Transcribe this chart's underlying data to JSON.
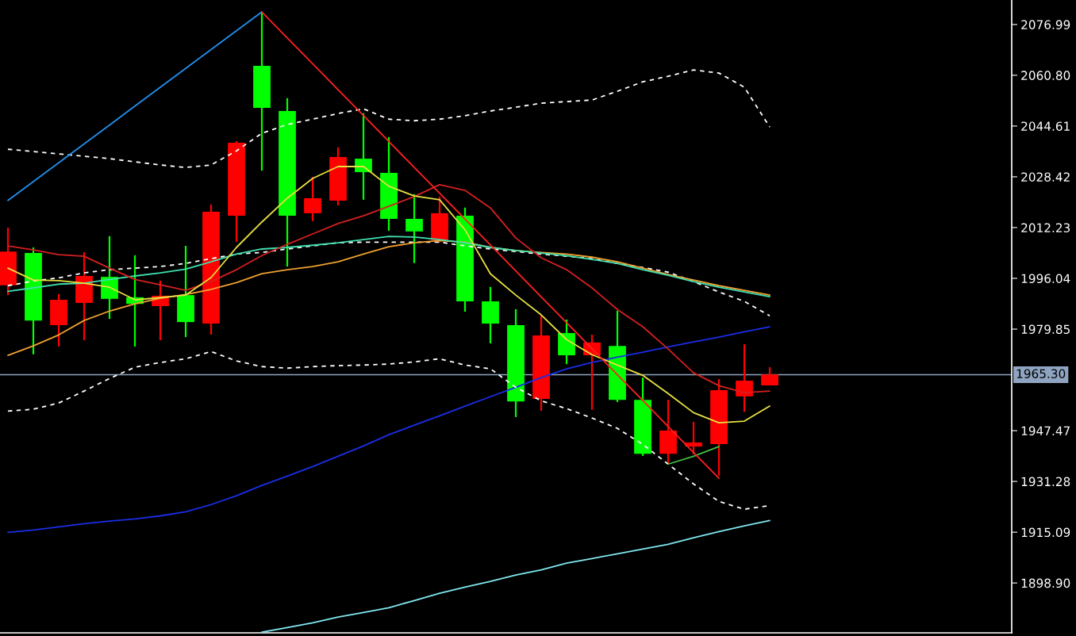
{
  "chart_data": {
    "type": "candlestick",
    "categories": [
      null,
      null,
      null,
      null,
      null,
      null,
      null,
      null,
      null,
      null,
      null,
      null,
      null,
      null,
      null,
      null,
      null,
      null,
      null,
      null,
      null,
      null,
      null,
      null,
      null,
      null,
      null,
      null,
      null,
      null,
      null
    ],
    "series": [
      {
        "type": "line",
        "color": "#80e8f0",
        "values": [
          null,
          null,
          null,
          null,
          null,
          null,
          null,
          null,
          null,
          null,
          1883.2,
          1884.7,
          1886.2,
          1888.0,
          1889.5,
          1891.0,
          1893.3,
          1895.6,
          1897.6,
          1899.4,
          1901.4,
          1903.1,
          1905.2,
          1906.7,
          1908.2,
          1909.7,
          1911.2,
          1913.3,
          1915.3,
          1917.1,
          1918.8
        ]
      },
      {
        "type": "line",
        "color": "#1a2ee8",
        "values": [
          1915.0,
          1915.8,
          1916.8,
          1917.8,
          1918.6,
          1919.3,
          1920.3,
          1921.6,
          1923.9,
          1926.7,
          1930.0,
          1933.0,
          1936.0,
          1939.3,
          1942.6,
          1946.2,
          1949.2,
          1952.2,
          1955.3,
          1958.3,
          1961.3,
          1964.4,
          1967.2,
          1969.2,
          1970.9,
          1972.5,
          1974.2,
          1975.8,
          1977.3,
          1979.0,
          1980.6
        ]
      },
      {
        "type": "line",
        "color": "#ffffff",
        "line_style": "dashed",
        "values": [
          2037.2,
          2036.5,
          2035.7,
          2035.0,
          2034.2,
          2033.2,
          2032.2,
          2031.4,
          2032.2,
          2036.7,
          2042.3,
          2045.1,
          2046.8,
          2048.6,
          2050.1,
          2046.8,
          2046.3,
          2046.8,
          2047.9,
          2049.4,
          2050.6,
          2051.9,
          2052.4,
          2052.9,
          2055.7,
          2058.7,
          2060.5,
          2062.5,
          2061.5,
          2057.0,
          2044.3
        ]
      },
      {
        "type": "line",
        "color": "#ffffff",
        "line_style": "dashed",
        "values": [
          1993.7,
          1995.2,
          1996.2,
          1997.8,
          1998.8,
          1999.3,
          1999.8,
          2000.8,
          2002.3,
          2003.8,
          2004.3,
          2005.4,
          2006.4,
          2007.4,
          2007.6,
          2007.6,
          2007.6,
          2007.6,
          2006.4,
          2005.4,
          2004.6,
          2003.8,
          2003.1,
          2002.3,
          2000.8,
          1999.5,
          1998.0,
          1995.0,
          1991.7,
          1988.7,
          1984.1
        ]
      },
      {
        "type": "line",
        "color": "#ffffff",
        "line_style": "dashed",
        "values": [
          1953.7,
          1954.3,
          1956.3,
          1960.1,
          1964.1,
          1967.7,
          1969.2,
          1970.4,
          1972.7,
          1969.7,
          1967.9,
          1967.4,
          1967.9,
          1968.2,
          1968.4,
          1968.7,
          1969.4,
          1970.4,
          1968.4,
          1967.2,
          1961.3,
          1957.0,
          1954.5,
          1951.5,
          1948.2,
          1943.1,
          1936.8,
          1930.5,
          1924.9,
          1922.4,
          1923.6
        ]
      },
      {
        "type": "line",
        "color": "#f0a030",
        "values": [
          1971.5,
          1974.5,
          1978.0,
          1982.6,
          1985.6,
          1987.9,
          1989.7,
          1990.9,
          1992.5,
          1994.7,
          1997.5,
          1998.8,
          1999.8,
          2001.3,
          2003.8,
          2006.1,
          2007.4,
          2008.1,
          2007.6,
          2005.9,
          2004.9,
          2004.3,
          2003.8,
          2002.8,
          2001.3,
          1999.3,
          1997.3,
          1995.5,
          1993.7,
          1992.2,
          1990.7
        ]
      },
      {
        "type": "line",
        "color": "#40e0b0",
        "values": [
          1991.9,
          1993.0,
          1994.2,
          1994.5,
          1995.7,
          1996.8,
          1997.8,
          1999.0,
          2001.3,
          2003.8,
          2005.4,
          2005.9,
          2006.6,
          2007.4,
          2008.4,
          2009.4,
          2009.2,
          2008.4,
          2007.4,
          2005.9,
          2004.9,
          2004.1,
          2003.3,
          2002.1,
          2000.8,
          1998.8,
          1997.0,
          1995.0,
          1993.2,
          1991.7,
          1990.2
        ]
      },
      {
        "type": "line",
        "color": "#d42020",
        "values": [
          2006.4,
          2005.1,
          2003.6,
          2003.1,
          1999.3,
          1995.7,
          1994.0,
          1992.2,
          1995.0,
          1998.8,
          2003.3,
          2006.9,
          2010.2,
          2013.5,
          2016.0,
          2019.0,
          2022.1,
          2025.9,
          2024.1,
          2018.5,
          2008.9,
          2002.6,
          1998.8,
          1993.0,
          1986.1,
          1980.6,
          1973.5,
          1965.9,
          1961.8,
          1959.6,
          1960.1
        ]
      },
      {
        "type": "line",
        "color": "#e8e040",
        "values": [
          1999.3,
          1995.5,
          1995.3,
          1994.5,
          1993.2,
          1989.2,
          1989.9,
          1990.7,
          1996.3,
          2005.9,
          2014.0,
          2021.6,
          2027.9,
          2031.7,
          2031.7,
          2025.4,
          2022.3,
          2021.1,
          2011.5,
          1997.5,
          1990.7,
          1984.4,
          1976.5,
          1971.7,
          1968.4,
          1965.1,
          1959.3,
          1953.2,
          1950.0,
          1950.5,
          1955.3
        ]
      },
      {
        "type": "line",
        "color": "#40c040",
        "values": [
          null,
          null,
          null,
          null,
          null,
          null,
          null,
          null,
          null,
          null,
          null,
          null,
          null,
          null,
          null,
          null,
          null,
          null,
          null,
          null,
          null,
          null,
          null,
          null,
          null,
          null,
          1936.8,
          1939.3,
          1942.4,
          null,
          null
        ]
      },
      {
        "type": "line",
        "color": "#2090f0",
        "values": [
          2020.9,
          2026.9,
          2032.9,
          2038.9,
          2044.9,
          2051.0,
          2057.0,
          2063.0,
          2069.0,
          2075.0,
          2081.0,
          null,
          null,
          null,
          null,
          null,
          null,
          null,
          null,
          null,
          null,
          null,
          null,
          null,
          null,
          null,
          null,
          null,
          null,
          null,
          null
        ]
      },
      {
        "type": "line",
        "color": "#ff2020",
        "values": [
          null,
          null,
          null,
          null,
          null,
          null,
          null,
          null,
          null,
          null,
          2081.0,
          2072.7,
          2064.5,
          2056.2,
          2048.0,
          2039.7,
          2031.4,
          2023.2,
          2014.9,
          2006.7,
          1998.4,
          1990.1,
          1981.9,
          1973.6,
          1965.3,
          1957.1,
          1948.8,
          1940.5,
          1932.3,
          null,
          null
        ]
      },
      {
        "colors": [
          "#ff0000",
          "#00ff00",
          "#ff0000",
          "#ff0000",
          "#00ff00",
          "#00ff00",
          "#ff0000",
          "#00ff00",
          "#ff0000",
          "#ff0000",
          "#00ff00",
          "#00ff00",
          "#ff0000",
          "#ff0000",
          "#00ff00",
          "#00ff00",
          "#00ff00",
          "#ff0000",
          "#00ff00",
          "#00ff00",
          "#00ff00",
          "#ff0000",
          "#00ff00",
          "#ff0000",
          "#00ff00",
          "#00ff00",
          "#ff0000",
          "#ff0000",
          "#ff0000",
          "#ff0000",
          "#ff0000"
        ],
        "ohlc": [
          [
            1993.8,
            2012.2,
            1990.7,
            2004.6
          ],
          [
            2004.1,
            2005.9,
            1971.8,
            1982.6
          ],
          [
            1981.1,
            1991.0,
            1974.3,
            1989.2
          ],
          [
            1988.2,
            2004.4,
            1976.3,
            1996.8
          ],
          [
            1996.5,
            2009.5,
            1983.1,
            1989.5
          ],
          [
            1990.0,
            2003.4,
            1974.3,
            1987.9
          ],
          [
            1987.2,
            1995.3,
            1976.3,
            1990.5
          ],
          [
            1990.7,
            2006.4,
            1977.3,
            1982.1
          ],
          [
            1981.6,
            2019.6,
            1978.1,
            2017.3
          ],
          [
            2016.0,
            2039.8,
            2007.7,
            2039.3
          ],
          [
            2063.8,
            2081.0,
            2030.4,
            2050.4
          ],
          [
            2049.4,
            2053.5,
            1999.8,
            2016.0
          ],
          [
            2016.8,
            2028.4,
            2014.3,
            2021.6
          ],
          [
            2020.8,
            2037.8,
            2019.3,
            2034.7
          ],
          [
            2034.2,
            2048.7,
            2021.1,
            2029.9
          ],
          [
            2029.7,
            2041.1,
            2011.2,
            2015.0
          ],
          [
            2015.0,
            2022.9,
            2000.9,
            2011.0
          ],
          [
            2008.2,
            2022.1,
            2007.4,
            2016.8
          ],
          [
            2016.0,
            2018.6,
            1985.4,
            1988.7
          ],
          [
            1988.7,
            1993.3,
            1975.3,
            1981.6
          ],
          [
            1981.1,
            1986.2,
            1951.8,
            1956.8
          ],
          [
            1957.6,
            1984.2,
            1953.8,
            1977.8
          ],
          [
            1978.6,
            1982.9,
            1968.7,
            1971.5
          ],
          [
            1971.5,
            1978.1,
            1954.1,
            1975.6
          ],
          [
            1974.5,
            1985.7,
            1956.6,
            1957.3
          ],
          [
            1957.3,
            1964.4,
            1939.4,
            1940.1
          ],
          [
            1940.1,
            1957.3,
            1936.8,
            1947.5
          ],
          [
            1942.4,
            1950.3,
            1939.9,
            1943.7
          ],
          [
            1943.2,
            1963.9,
            1933.1,
            1960.4
          ],
          [
            1958.4,
            1975.0,
            1953.5,
            1963.4
          ],
          [
            1961.9,
            1967.7,
            1961.9,
            1965.4
          ]
        ]
      }
    ],
    "ylim": [
      1883.0,
      2084.8
    ],
    "yticks": [
      2076.99,
      {
        "value": 2060.8,
        "label": "2060.80"
      },
      2044.61,
      2028.42,
      2012.23,
      1996.04,
      1979.85,
      1947.47,
      1931.28,
      1915.09,
      {
        "value": 1898.9,
        "label": "1898.90"
      }
    ],
    "tick_labels": "y",
    "ref_lines": [
      {
        "axis": "y",
        "value": 1965.3,
        "label": "1965.30",
        "color": "#8ea4c0"
      }
    ]
  }
}
